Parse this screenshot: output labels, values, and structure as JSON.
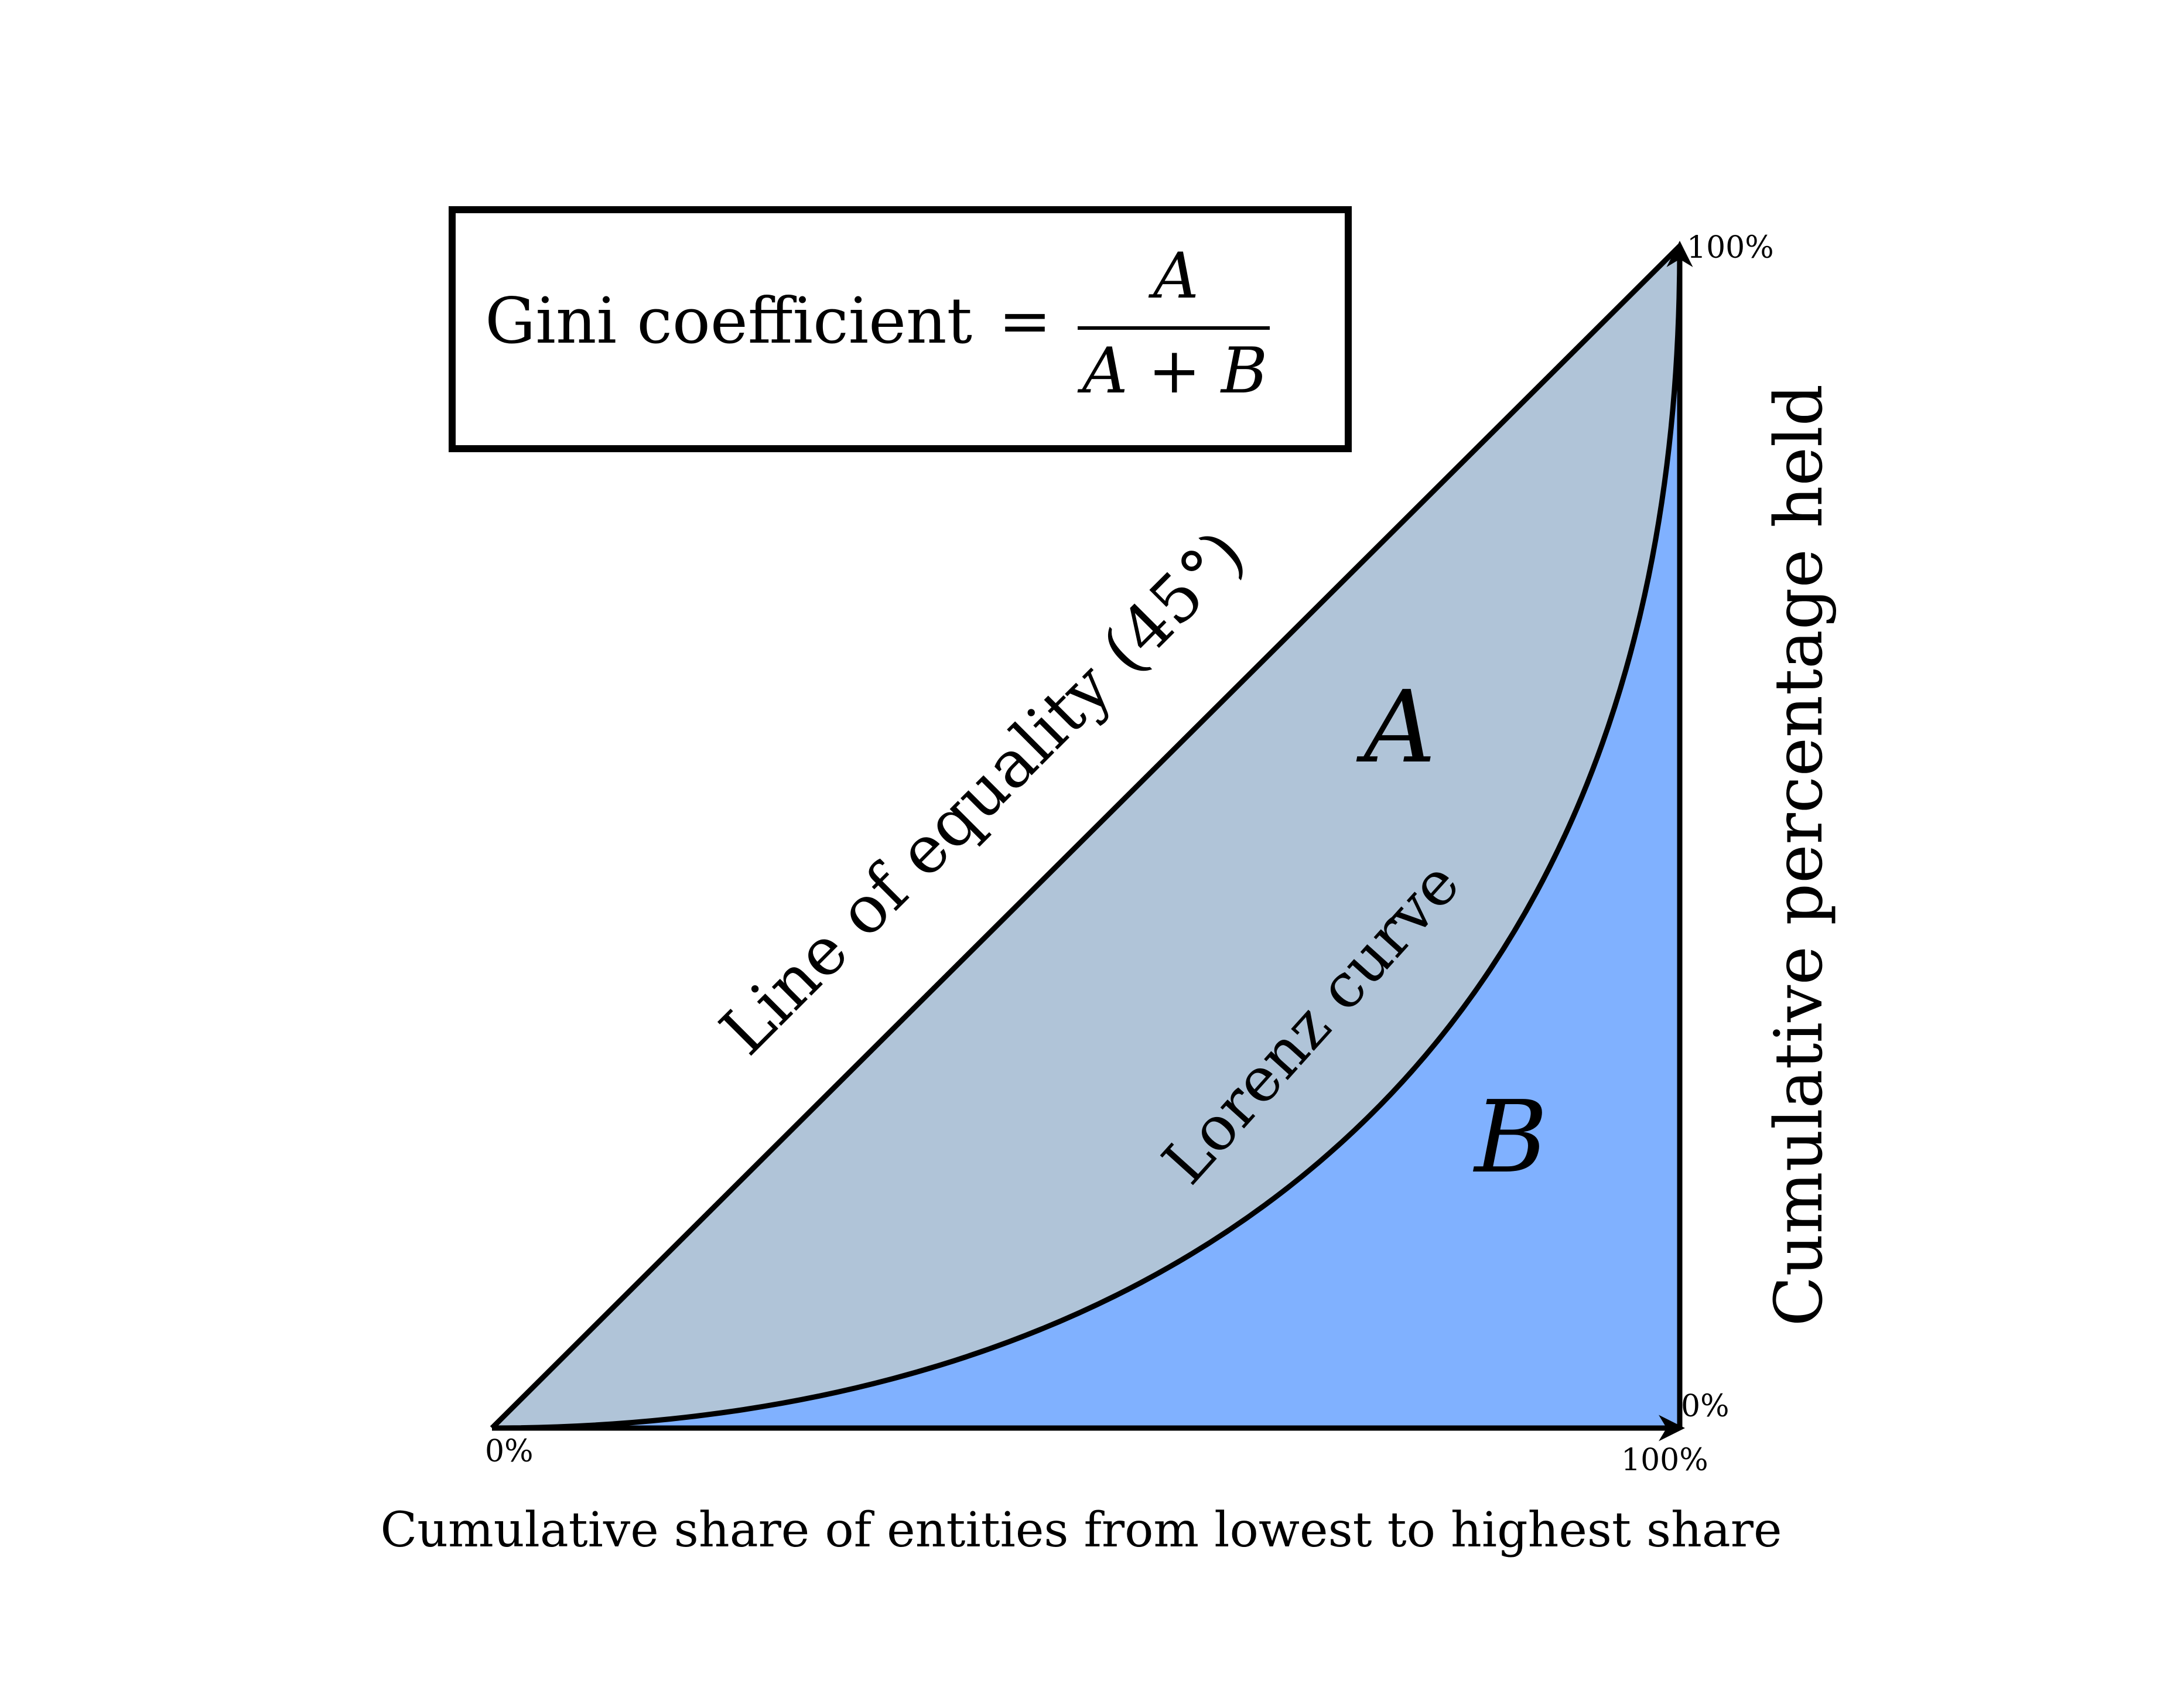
{
  "formula": {
    "lhs": "Gini coefficient",
    "equals": "=",
    "numerator": "A",
    "denominator": "A + B"
  },
  "labels": {
    "equality_line": "Line of equality (45°)",
    "lorenz_curve": "Lorenz curve",
    "region_a": "A",
    "region_b": "B",
    "x_axis": "Cumulative share of entities from lowest to highest share",
    "y_axis": "Cumulative percentage held",
    "origin": "0%",
    "x_end": "100%",
    "y_start": "0%",
    "y_end": "100%"
  },
  "colors": {
    "region_a_fill": "#b0c4d8",
    "region_b_fill": "#80b1ff",
    "stroke": "#000000"
  }
}
